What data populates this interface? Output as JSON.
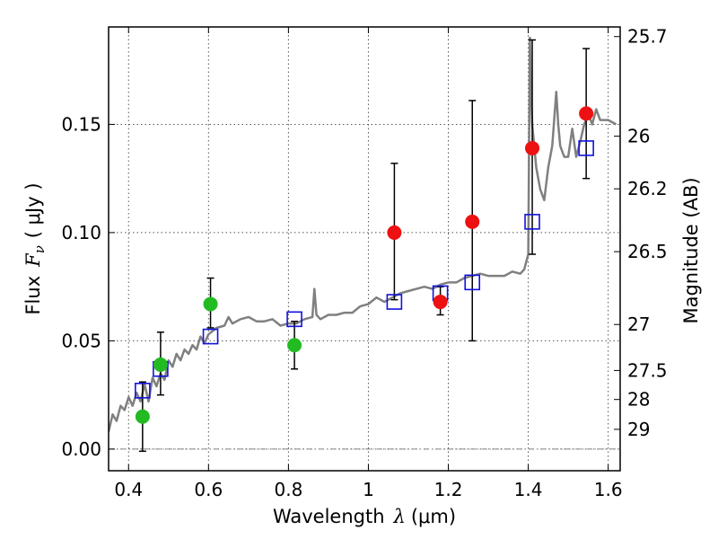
{
  "chart_data": {
    "type": "scatter",
    "xlabel_text": "Wavelength",
    "xlabel_symbol": "λ",
    "xlabel_unit": "(μm)",
    "ylabel_text": "Flux",
    "ylabel_symbol": "F",
    "ylabel_subscript": "ν",
    "ylabel_unit": "( μJy )",
    "y2label": "Magnitude (AB)",
    "xlim": [
      0.35,
      1.63
    ],
    "ylim": [
      -0.01,
      0.195
    ],
    "x_ticks": [
      {
        "value": 0.4,
        "label": "0.4"
      },
      {
        "value": 0.6,
        "label": "0.6"
      },
      {
        "value": 0.8,
        "label": "0.8"
      },
      {
        "value": 1.0,
        "label": "1"
      },
      {
        "value": 1.2,
        "label": "1.2"
      },
      {
        "value": 1.4,
        "label": "1.4"
      },
      {
        "value": 1.6,
        "label": "1.6"
      }
    ],
    "y_ticks": [
      {
        "value": 0.0,
        "label": "0.00"
      },
      {
        "value": 0.05,
        "label": "0.05"
      },
      {
        "value": 0.1,
        "label": "0.10"
      },
      {
        "value": 0.15,
        "label": "0.15"
      }
    ],
    "y2_ticks": [
      {
        "value": 25.7,
        "label": "25.7"
      },
      {
        "value": 26,
        "label": "26"
      },
      {
        "value": 26.2,
        "label": "26.2"
      },
      {
        "value": 26.5,
        "label": "26.5"
      },
      {
        "value": 27,
        "label": "27"
      },
      {
        "value": 27.5,
        "label": "27.5"
      },
      {
        "value": 28,
        "label": "28"
      },
      {
        "value": 29,
        "label": "29"
      }
    ],
    "zero_line": 0.0,
    "grid": true,
    "colors": {
      "model": "#808080",
      "green": "#22bb22",
      "red": "#ee1111",
      "squares": "#1111dd",
      "errorbars": "#000000",
      "zero_line": "#888888"
    },
    "series": [
      {
        "name": "model spectrum",
        "kind": "line",
        "x": [
          0.35,
          0.36,
          0.37,
          0.38,
          0.39,
          0.4,
          0.41,
          0.42,
          0.43,
          0.44,
          0.45,
          0.46,
          0.47,
          0.48,
          0.49,
          0.5,
          0.51,
          0.52,
          0.53,
          0.54,
          0.55,
          0.56,
          0.57,
          0.58,
          0.59,
          0.6,
          0.62,
          0.64,
          0.65,
          0.66,
          0.68,
          0.7,
          0.72,
          0.74,
          0.76,
          0.78,
          0.8,
          0.82,
          0.84,
          0.86,
          0.865,
          0.87,
          0.88,
          0.9,
          0.92,
          0.94,
          0.96,
          0.98,
          1.0,
          1.02,
          1.04,
          1.06,
          1.08,
          1.1,
          1.12,
          1.14,
          1.16,
          1.18,
          1.2,
          1.22,
          1.24,
          1.26,
          1.28,
          1.3,
          1.32,
          1.34,
          1.36,
          1.38,
          1.39,
          1.4,
          1.402,
          1.404,
          1.406,
          1.41,
          1.42,
          1.43,
          1.44,
          1.45,
          1.46,
          1.47,
          1.475,
          1.48,
          1.49,
          1.5,
          1.51,
          1.52,
          1.53,
          1.54,
          1.55,
          1.56,
          1.57,
          1.58,
          1.6,
          1.62
        ],
        "y": [
          0.008,
          0.016,
          0.013,
          0.02,
          0.018,
          0.024,
          0.02,
          0.026,
          0.022,
          0.03,
          0.022,
          0.033,
          0.029,
          0.035,
          0.032,
          0.041,
          0.038,
          0.044,
          0.041,
          0.046,
          0.044,
          0.048,
          0.046,
          0.052,
          0.049,
          0.053,
          0.056,
          0.057,
          0.061,
          0.058,
          0.06,
          0.061,
          0.059,
          0.059,
          0.06,
          0.057,
          0.058,
          0.058,
          0.06,
          0.061,
          0.074,
          0.062,
          0.06,
          0.062,
          0.062,
          0.063,
          0.063,
          0.066,
          0.067,
          0.07,
          0.068,
          0.07,
          0.072,
          0.073,
          0.074,
          0.075,
          0.074,
          0.076,
          0.077,
          0.077,
          0.079,
          0.08,
          0.081,
          0.08,
          0.08,
          0.08,
          0.082,
          0.081,
          0.083,
          0.09,
          0.14,
          0.19,
          0.17,
          0.15,
          0.13,
          0.12,
          0.115,
          0.13,
          0.14,
          0.165,
          0.15,
          0.14,
          0.135,
          0.135,
          0.148,
          0.135,
          0.142,
          0.15,
          0.155,
          0.15,
          0.157,
          0.152,
          0.152,
          0.15
        ]
      },
      {
        "name": "green photometry",
        "kind": "points",
        "points": [
          {
            "x": 0.435,
            "y": 0.015,
            "err_lo": 0.016,
            "err_hi": 0.016
          },
          {
            "x": 0.48,
            "y": 0.039,
            "err_lo": 0.014,
            "err_hi": 0.015
          },
          {
            "x": 0.605,
            "y": 0.067,
            "err_lo": 0.011,
            "err_hi": 0.012
          },
          {
            "x": 0.815,
            "y": 0.048,
            "err_lo": 0.011,
            "err_hi": 0.011
          }
        ]
      },
      {
        "name": "red photometry",
        "kind": "points",
        "points": [
          {
            "x": 1.065,
            "y": 0.1,
            "err_lo": 0.031,
            "err_hi": 0.032
          },
          {
            "x": 1.18,
            "y": 0.068,
            "err_lo": 0.006,
            "err_hi": 0.007
          },
          {
            "x": 1.26,
            "y": 0.105,
            "err_lo": 0.055,
            "err_hi": 0.056
          },
          {
            "x": 1.41,
            "y": 0.139,
            "err_lo": 0.049,
            "err_hi": 0.05
          },
          {
            "x": 1.545,
            "y": 0.155,
            "err_lo": 0.03,
            "err_hi": 0.03
          }
        ]
      },
      {
        "name": "model synthetic photometry",
        "kind": "squares",
        "points": [
          {
            "x": 0.435,
            "y": 0.027
          },
          {
            "x": 0.48,
            "y": 0.037
          },
          {
            "x": 0.605,
            "y": 0.052
          },
          {
            "x": 0.815,
            "y": 0.06
          },
          {
            "x": 1.065,
            "y": 0.068
          },
          {
            "x": 1.18,
            "y": 0.072
          },
          {
            "x": 1.26,
            "y": 0.077
          },
          {
            "x": 1.41,
            "y": 0.105
          },
          {
            "x": 1.545,
            "y": 0.139
          }
        ]
      }
    ]
  }
}
